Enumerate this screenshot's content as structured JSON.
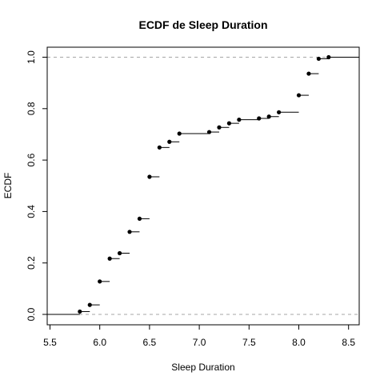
{
  "chart_data": {
    "type": "line",
    "title": "ECDF de Sleep Duration",
    "xlabel": "Sleep Duration",
    "ylabel": "ECDF",
    "xlim": [
      5.5,
      8.6
    ],
    "ylim": [
      0.0,
      1.0
    ],
    "x_ticks": [
      5.5,
      6.0,
      6.5,
      7.0,
      7.5,
      8.0,
      8.5
    ],
    "x_tick_labels": [
      "5.5",
      "6.0",
      "6.5",
      "7.0",
      "7.5",
      "8.0",
      "8.5"
    ],
    "y_ticks": [
      0.0,
      0.2,
      0.4,
      0.6,
      0.8,
      1.0
    ],
    "y_tick_labels": [
      "0.0",
      "0.2",
      "0.4",
      "0.6",
      "0.8",
      "1.0"
    ],
    "reference_lines": [
      0.0,
      1.0
    ],
    "grid": false,
    "steps": [
      {
        "x": 5.8,
        "y": 0.011
      },
      {
        "x": 5.9,
        "y": 0.037
      },
      {
        "x": 6.0,
        "y": 0.128
      },
      {
        "x": 6.1,
        "y": 0.217
      },
      {
        "x": 6.2,
        "y": 0.238
      },
      {
        "x": 6.3,
        "y": 0.321
      },
      {
        "x": 6.4,
        "y": 0.372
      },
      {
        "x": 6.5,
        "y": 0.535
      },
      {
        "x": 6.6,
        "y": 0.649
      },
      {
        "x": 6.7,
        "y": 0.671
      },
      {
        "x": 6.8,
        "y": 0.703
      },
      {
        "x": 7.1,
        "y": 0.709
      },
      {
        "x": 7.2,
        "y": 0.727
      },
      {
        "x": 7.3,
        "y": 0.743
      },
      {
        "x": 7.4,
        "y": 0.757
      },
      {
        "x": 7.6,
        "y": 0.762
      },
      {
        "x": 7.7,
        "y": 0.769
      },
      {
        "x": 7.8,
        "y": 0.786
      },
      {
        "x": 8.0,
        "y": 0.852
      },
      {
        "x": 8.1,
        "y": 0.936
      },
      {
        "x": 8.2,
        "y": 0.994
      },
      {
        "x": 8.3,
        "y": 1.0
      }
    ]
  }
}
